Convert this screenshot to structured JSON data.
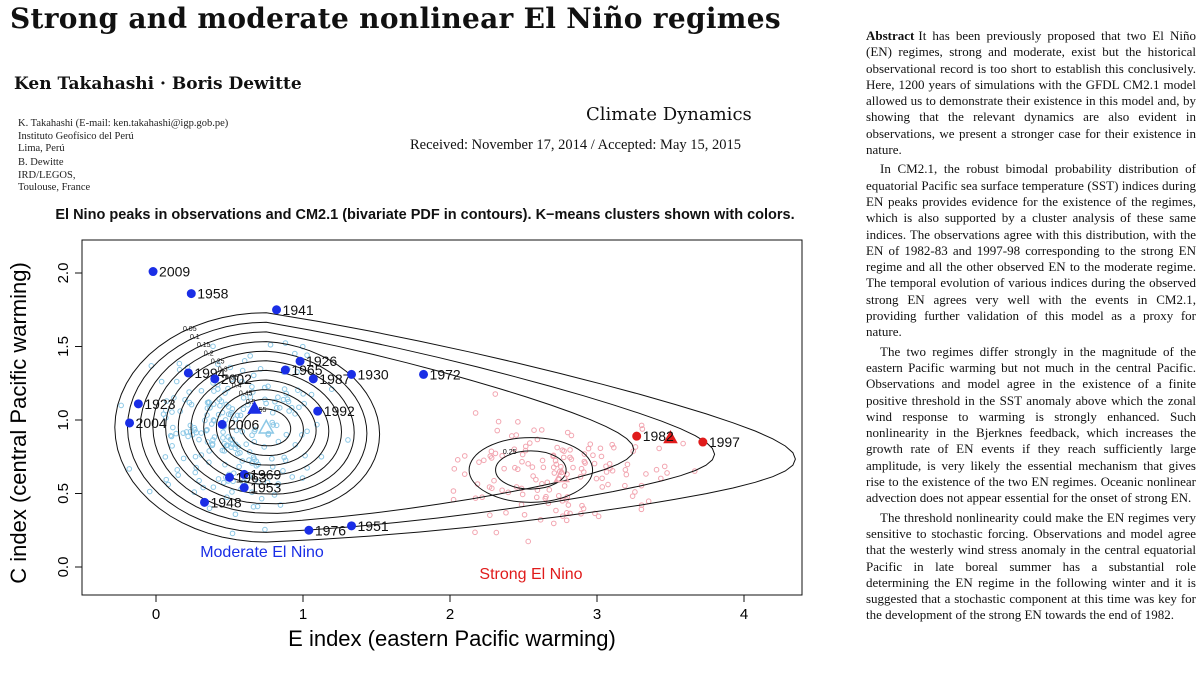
{
  "paper": {
    "title": "Strong and moderate nonlinear El Niño regimes",
    "authors": "Ken Takahashi · Boris Dewitte",
    "affiliation1": [
      "K. Takahashi (E-mail: ken.takahashi@igp.gob.pe)",
      "Instituto Geofísico del Perú",
      "Lima, Perú"
    ],
    "affiliation2": [
      "B. Dewitte",
      "IRD/LEGOS,",
      "Toulouse, France"
    ],
    "journal": "Climate Dynamics",
    "received": "Received: November 17, 2014 / Accepted: May 15, 2015"
  },
  "abstract": {
    "heading": "Abstract",
    "p1": "It has been previously proposed that two El Niño (EN) regimes, strong and moderate, exist but the historical observational record is too short to establish this conclusively. Here, 1200 years of simulations with the GFDL CM2.1 model allowed us to demonstrate their existence in this model and, by showing that the relevant dynamics are also evident in observations, we present a stronger case for their existence in nature.",
    "p2": "In CM2.1, the robust bimodal probability distribution of equatorial Pacific sea surface temperature (SST) indices during EN peaks provides evidence for the existence of the regimes, which is also supported by a cluster analysis of these same indices. The observations agree with this distribution, with the EN of 1982-83 and 1997-98 corresponding to the strong EN regime and all the other observed EN to the moderate regime. The temporal evolution of various indices during the observed strong EN agrees very well with the events in CM2.1, providing further validation of this model as a proxy for nature.",
    "p3": "The two regimes differ strongly in the magnitude of the eastern Pacific warming but not much in the central Pacific. Observations and model agree in the existence of a finite positive threshold in the SST anomaly above which the zonal wind response to warming is strongly enhanced. Such nonlinearity in the Bjerknes feedback, which increases the growth rate of EN events if they reach sufficiently large amplitude, is very likely the essential mechanism that gives rise to the existence of the two EN regimes. Oceanic nonlinear advection does not appear essential for the onset of strong EN.",
    "p4": "The threshold nonlinearity could make the EN regimes very sensitive to stochastic forcing. Observations and model agree that the westerly wind stress anomaly in the central equatorial Pacific in late boreal summer has a substantial role determining the EN regime in the following winter and it is suggested that a stochastic component at this time was key for the development of the strong EN towards the end of 1982."
  },
  "figure": {
    "title": "El Nino peaks in observations and CM2.1 (bivariate PDF in contours). K−means clusters shown with colors."
  },
  "chart_data": {
    "type": "scatter",
    "title": "El Nino peaks in observations and CM2.1 (bivariate PDF in contours). K−means clusters shown with colors.",
    "xlabel": "E index (eastern Pacific warming)",
    "ylabel": "C index (central Pacific warming)",
    "xlim": [
      -0.6,
      4.6
    ],
    "ylim": [
      -0.22,
      2.2
    ],
    "xticks": [
      "0",
      "1",
      "2",
      "3",
      "4"
    ],
    "yticks": [
      "0.0",
      "0.5",
      "1.0",
      "1.5",
      "2.0"
    ],
    "cluster_labels": {
      "moderate": "Moderate El Nino",
      "strong": "Strong El Nino"
    },
    "colors": {
      "moderate": "#1a2ee6",
      "strong": "#e01b1b",
      "model_moderate": "#8cc8e6",
      "model_strong": "#f2a5b0",
      "contour": "#111111"
    },
    "observed_moderate": [
      {
        "year": "2009",
        "E": -0.02,
        "C": 2.01
      },
      {
        "year": "1958",
        "E": 0.24,
        "C": 1.86
      },
      {
        "year": "1941",
        "E": 0.82,
        "C": 1.75
      },
      {
        "year": "1926",
        "E": 0.98,
        "C": 1.4
      },
      {
        "year": "1965",
        "E": 0.88,
        "C": 1.34
      },
      {
        "year": "1994",
        "E": 0.22,
        "C": 1.32
      },
      {
        "year": "2002",
        "E": 0.4,
        "C": 1.28
      },
      {
        "year": "1987",
        "E": 1.07,
        "C": 1.28
      },
      {
        "year": "1930",
        "E": 1.33,
        "C": 1.31
      },
      {
        "year": "1972",
        "E": 1.82,
        "C": 1.31
      },
      {
        "year": "1923",
        "E": -0.12,
        "C": 1.11
      },
      {
        "year": "1992",
        "E": 1.1,
        "C": 1.06
      },
      {
        "year": "2004",
        "E": -0.18,
        "C": 0.98
      },
      {
        "year": "2006",
        "E": 0.45,
        "C": 0.97
      },
      {
        "year": "1969",
        "E": 0.6,
        "C": 0.63
      },
      {
        "year": "1963",
        "E": 0.5,
        "C": 0.61
      },
      {
        "year": "1953",
        "E": 0.6,
        "C": 0.54
      },
      {
        "year": "1948",
        "E": 0.33,
        "C": 0.44
      },
      {
        "year": "1976",
        "E": 1.04,
        "C": 0.25
      },
      {
        "year": "1951",
        "E": 1.33,
        "C": 0.28
      }
    ],
    "observed_strong": [
      {
        "year": "1982",
        "E": 3.27,
        "C": 0.89
      },
      {
        "year": "1997",
        "E": 3.72,
        "C": 0.85
      }
    ],
    "centroids": {
      "obs_moderate": {
        "E": 0.67,
        "C": 1.08
      },
      "obs_strong": {
        "E": 3.5,
        "C": 0.88
      },
      "model_moderate": {
        "E": 0.75,
        "C": 0.95
      },
      "model_strong": {
        "E": 2.76,
        "C": 0.62
      }
    },
    "contour_levels": [
      "0.05",
      "0.1",
      "0.15",
      "0.2",
      "0.25",
      "0.3",
      "0.35",
      "0.4",
      "0.45",
      "0.5",
      "0.55"
    ],
    "contour_level_strong": "0.25"
  }
}
